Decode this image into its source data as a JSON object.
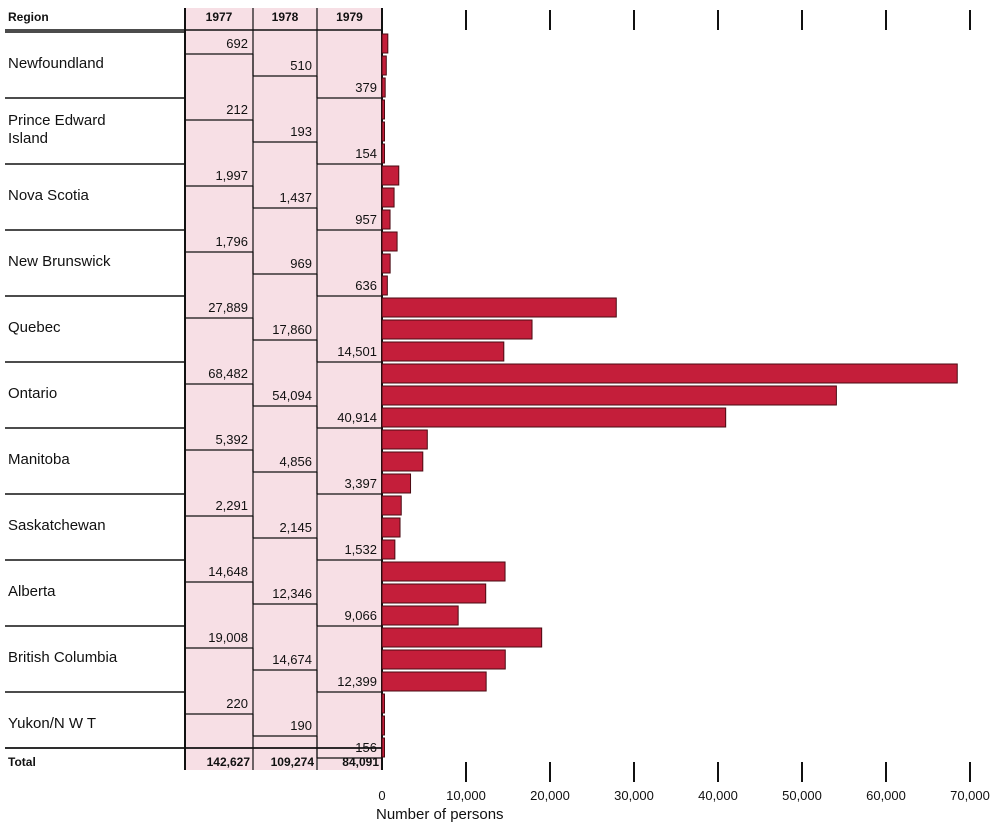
{
  "chart_data": {
    "type": "bar",
    "orientation": "horizontal",
    "table_header": {
      "region": "Region",
      "years": [
        "1977",
        "1978",
        "1979"
      ]
    },
    "regions": [
      {
        "name": "Newfoundland",
        "lines": [
          "Newfoundland"
        ],
        "values": [
          692,
          510,
          379
        ],
        "labels": [
          "692",
          "510",
          "379"
        ]
      },
      {
        "name": "Prince Edward Island",
        "lines": [
          "Prince Edward",
          "Island"
        ],
        "values": [
          212,
          193,
          154
        ],
        "labels": [
          "212",
          "193",
          "154"
        ]
      },
      {
        "name": "Nova Scotia",
        "lines": [
          "Nova Scotia"
        ],
        "values": [
          1997,
          1437,
          957
        ],
        "labels": [
          "1,997",
          "1,437",
          "957"
        ]
      },
      {
        "name": "New Brunswick",
        "lines": [
          "New Brunswick"
        ],
        "values": [
          1796,
          969,
          636
        ],
        "labels": [
          "1,796",
          "969",
          "636"
        ]
      },
      {
        "name": "Quebec",
        "lines": [
          "Quebec"
        ],
        "values": [
          27889,
          17860,
          14501
        ],
        "labels": [
          "27,889",
          "17,860",
          "14,501"
        ]
      },
      {
        "name": "Ontario",
        "lines": [
          "Ontario"
        ],
        "values": [
          68482,
          54094,
          40914
        ],
        "labels": [
          "68,482",
          "54,094",
          "40,914"
        ]
      },
      {
        "name": "Manitoba",
        "lines": [
          "Manitoba"
        ],
        "values": [
          5392,
          4856,
          3397
        ],
        "labels": [
          "5,392",
          "4,856",
          "3,397"
        ]
      },
      {
        "name": "Saskatchewan",
        "lines": [
          "Saskatchewan"
        ],
        "values": [
          2291,
          2145,
          1532
        ],
        "labels": [
          "2,291",
          "2,145",
          "1,532"
        ]
      },
      {
        "name": "Alberta",
        "lines": [
          "Alberta"
        ],
        "values": [
          14648,
          12346,
          9066
        ],
        "labels": [
          "14,648",
          "12,346",
          "9,066"
        ]
      },
      {
        "name": "British Columbia",
        "lines": [
          "British Columbia"
        ],
        "values": [
          19008,
          14674,
          12399
        ],
        "labels": [
          "19,008",
          "14,674",
          "12,399"
        ]
      },
      {
        "name": "Yukon/N W T",
        "lines": [
          "Yukon/N W T"
        ],
        "values": [
          220,
          190,
          156
        ],
        "labels": [
          "220",
          "190",
          "156"
        ]
      }
    ],
    "total": {
      "label": "Total",
      "values": [
        "142,627",
        "109,274",
        "84,091"
      ]
    },
    "x_ticks": [
      0,
      10000,
      20000,
      30000,
      40000,
      50000,
      60000,
      70000
    ],
    "x_tick_labels": [
      "0",
      "10,000",
      "20,000",
      "30,000",
      "40,000",
      "50,000",
      "60,000",
      "70,000"
    ],
    "xlabel": "Number of persons",
    "xlim": [
      0,
      70000
    ],
    "colors": {
      "bar": "#c41e3a",
      "bar_edge": "#4a0a12",
      "table_fill": "#f7dfe5"
    }
  }
}
